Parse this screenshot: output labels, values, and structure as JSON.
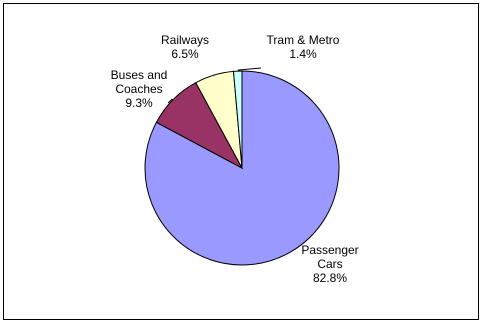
{
  "chart_data": {
    "type": "pie",
    "title": "",
    "slices": [
      {
        "label_lines": [
          "Passenger",
          "Cars"
        ],
        "value": 82.8,
        "value_label": "82.8%",
        "color": "#9999ff"
      },
      {
        "label_lines": [
          "Buses and",
          "Coaches"
        ],
        "value": 9.3,
        "value_label": "9.3%",
        "color": "#993366"
      },
      {
        "label_lines": [
          "Railways"
        ],
        "value": 6.5,
        "value_label": "6.5%",
        "color": "#ffffcc"
      },
      {
        "label_lines": [
          "Tram & Metro"
        ],
        "value": 1.4,
        "value_label": "1.4%",
        "color": "#ccffff"
      }
    ],
    "legend": "none",
    "slice_outline_color": "#000000"
  }
}
